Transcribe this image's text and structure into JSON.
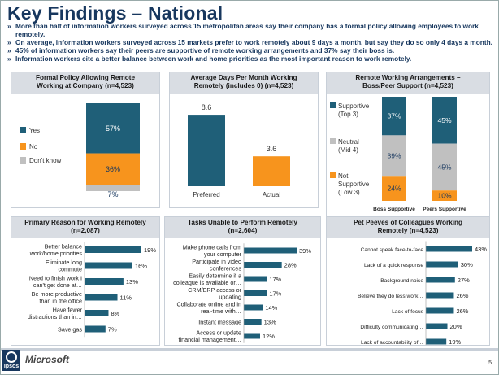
{
  "title": "Key Findings – National",
  "bullets": [
    "More than half of information workers surveyed across 15 metropolitan areas say their company has a formal policy allowing employees to work remotely.",
    "On average, information workers surveyed across 15 markets prefer to work remotely about 9 days a month, but say they do so only 4 days a month.",
    "45% of information workers say their peers are supportive of remote working arrangements and 37% say their boss is.",
    "Information workers cite a better balance between work and home priorities as the most important reason to work remotely."
  ],
  "colors": {
    "teal": "#1f5f78",
    "orange": "#f7941d",
    "gray": "#c0c0c0",
    "navy": "#17375e"
  },
  "chart_data": [
    {
      "type": "bar",
      "title_line1": "Formal Policy Allowing Remote",
      "title_line2": "Working at Company (n=4,523)",
      "series": [
        {
          "name": "Yes",
          "value": 57,
          "label": "57%"
        },
        {
          "name": "No",
          "value": 36,
          "label": "36%"
        },
        {
          "name": "Don't know",
          "value": 7,
          "label": "7%"
        }
      ]
    },
    {
      "type": "bar",
      "title_line1": "Average Days Per Month Working",
      "title_line2": "Remotely (includes 0) (n=4,523)",
      "categories": [
        "Preferred",
        "Actual"
      ],
      "values": [
        8.6,
        3.6
      ],
      "labels": [
        "8.6",
        "3.6"
      ],
      "ylim": [
        0,
        9
      ]
    },
    {
      "type": "bar",
      "title_line1": "Remote Working Arrangements –",
      "title_line2": "Boss/Peer Support (n=4,523)",
      "categories": [
        "Boss Supportive",
        "Peers Supportive"
      ],
      "series": [
        {
          "name": "Supportive (Top 3)",
          "name_l1": "Supportive",
          "name_l2": "(Top 3)",
          "values": [
            37,
            45
          ],
          "labels": [
            "37%",
            "45%"
          ]
        },
        {
          "name": "Neutral (Mid 4)",
          "name_l1": "Neutral",
          "name_l2": "(Mid 4)",
          "values": [
            39,
            45
          ],
          "labels": [
            "39%",
            "45%"
          ]
        },
        {
          "name": "Not Supportive (Low 3)",
          "name_l1": "Not",
          "name_l2": "Supportive",
          "name_l3": "(Low 3)",
          "values": [
            24,
            10
          ],
          "labels": [
            "24%",
            "10%"
          ]
        }
      ]
    },
    {
      "type": "bar",
      "title_line1": "Primary Reason for Working Remotely",
      "title_line2": "(n=2,087)",
      "items": [
        {
          "l1": "Better balance",
          "l2": "work/home priorities",
          "value": 19,
          "label": "19%"
        },
        {
          "l1": "Eliminate long",
          "l2": "commute",
          "value": 16,
          "label": "16%"
        },
        {
          "l1": "Need to finish work I",
          "l2": "can't get done at…",
          "value": 13,
          "label": "13%"
        },
        {
          "l1": "Be more productive",
          "l2": "than in the office",
          "value": 11,
          "label": "11%"
        },
        {
          "l1": "Have fewer",
          "l2": "distractions than in…",
          "value": 8,
          "label": "8%"
        },
        {
          "l1": "Save gas",
          "l2": "",
          "value": 7,
          "label": "7%"
        }
      ]
    },
    {
      "type": "bar",
      "title_line1": "Tasks Unable to Perform Remotely",
      "title_line2": "(n=2,604)",
      "items": [
        {
          "l1": "Make phone calls from",
          "l2": "your computer",
          "value": 39,
          "label": "39%"
        },
        {
          "l1": "Participate in video",
          "l2": "conferences",
          "value": 28,
          "label": "28%"
        },
        {
          "l1": "Easily determine if a",
          "l2": "colleague is available or…",
          "value": 17,
          "label": "17%"
        },
        {
          "l1": "CRM/ERP access or",
          "l2": "updating",
          "value": 17,
          "label": "17%"
        },
        {
          "l1": "Collaborate online and in",
          "l2": "real-time with…",
          "value": 14,
          "label": "14%"
        },
        {
          "l1": "Instant message",
          "l2": "",
          "value": 13,
          "label": "13%"
        },
        {
          "l1": "Access or update",
          "l2": "financial management…",
          "value": 12,
          "label": "12%"
        }
      ]
    },
    {
      "type": "bar",
      "title_line1": "Pet Peeves of Colleagues Working",
      "title_line2": "Remotely (n=4,523)",
      "items": [
        {
          "l1": "Cannot speak face-to-face",
          "l2": "",
          "value": 43,
          "label": "43%"
        },
        {
          "l1": "Lack of a quick response",
          "l2": "",
          "value": 30,
          "label": "30%"
        },
        {
          "l1": "Background noise",
          "l2": "",
          "value": 27,
          "label": "27%"
        },
        {
          "l1": "Believe they do less work…",
          "l2": "",
          "value": 26,
          "label": "26%"
        },
        {
          "l1": "Lack of focus",
          "l2": "",
          "value": 26,
          "label": "26%"
        },
        {
          "l1": "Difficulty communicating…",
          "l2": "",
          "value": 20,
          "label": "20%"
        },
        {
          "l1": "Lack of accountability of…",
          "l2": "",
          "value": 19,
          "label": "19%"
        }
      ]
    }
  ],
  "footer": {
    "ipsos": "Ipsos",
    "microsoft": "Microsoft",
    "page": "5"
  }
}
